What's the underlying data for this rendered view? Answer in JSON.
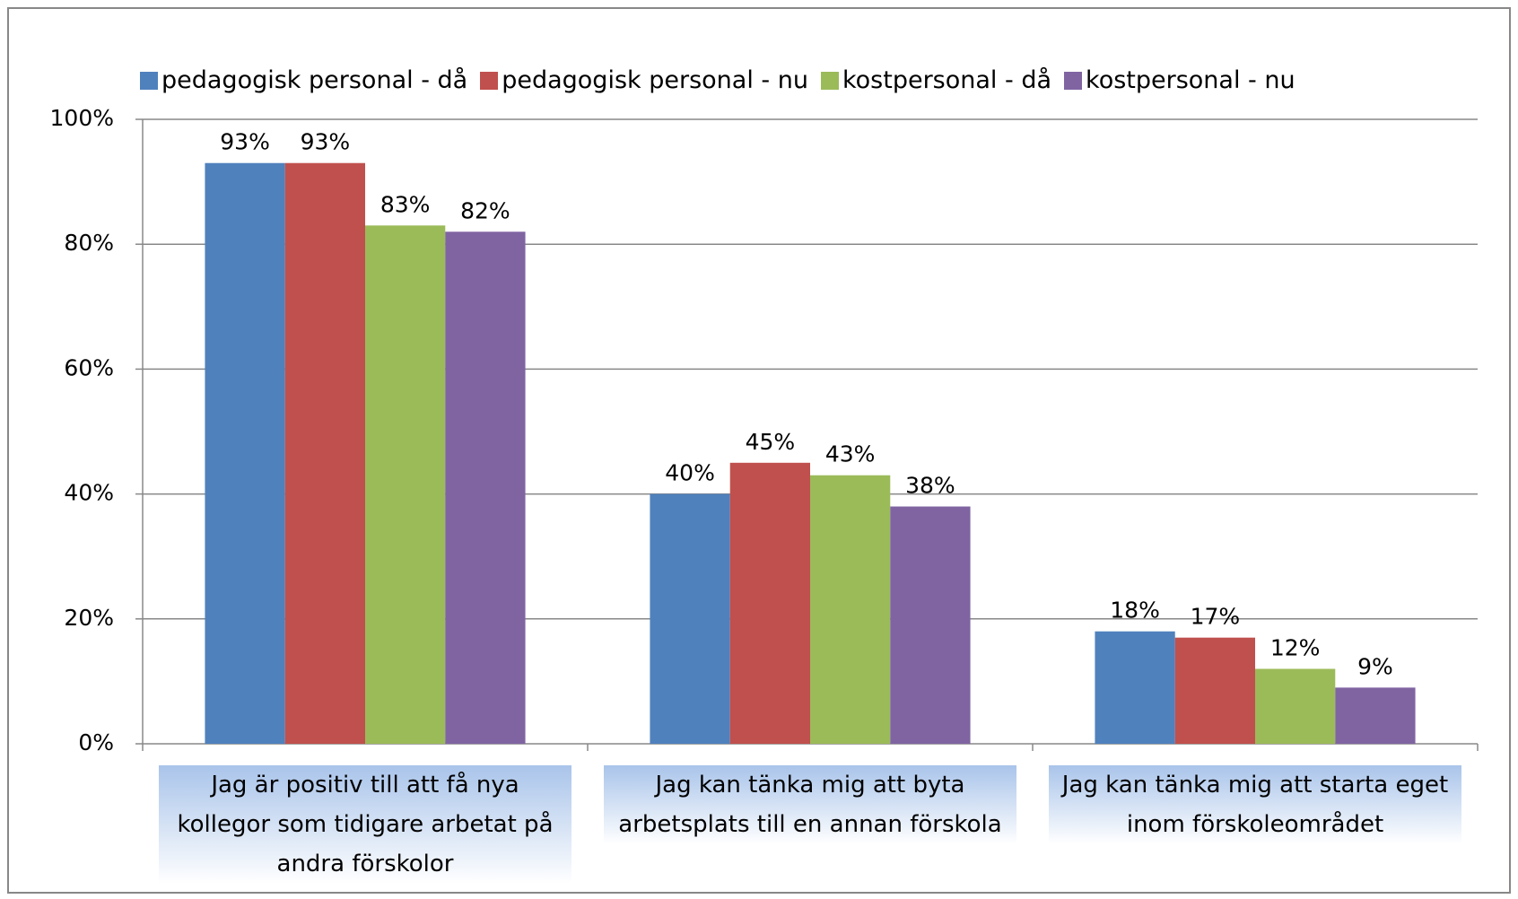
{
  "chart_data": {
    "type": "bar",
    "categories": [
      "Jag är positiv till att få nya kollegor som tidigare arbetat på andra förskolor",
      "Jag kan tänka mig att byta arbetsplats till en annan förskola",
      "Jag kan tänka mig att starta eget inom förskoleområdet"
    ],
    "series": [
      {
        "name": "pedagogisk personal - då",
        "color": "#4f81bd",
        "values": [
          93,
          40,
          18
        ],
        "value_labels": [
          "93%",
          "40%",
          "18%"
        ]
      },
      {
        "name": "pedagogisk personal - nu",
        "color": "#c0504d",
        "values": [
          93,
          45,
          17
        ],
        "value_labels": [
          "93%",
          "45%",
          "17%"
        ]
      },
      {
        "name": "kostpersonal - då",
        "color": "#9bbb59",
        "values": [
          83,
          43,
          12
        ],
        "value_labels": [
          "83%",
          "43%",
          "12%"
        ]
      },
      {
        "name": "kostpersonal - nu",
        "color": "#8064a2",
        "values": [
          82,
          38,
          9
        ],
        "value_labels": [
          "82%",
          "38%",
          "9%"
        ]
      }
    ],
    "ylim": [
      0,
      100
    ],
    "yticks": [
      {
        "value": 0,
        "label": "0%"
      },
      {
        "value": 20,
        "label": "20%"
      },
      {
        "value": 40,
        "label": "40%"
      },
      {
        "value": 60,
        "label": "60%"
      },
      {
        "value": 80,
        "label": "80%"
      },
      {
        "value": 100,
        "label": "100%"
      }
    ],
    "grid": true,
    "legend": "top"
  }
}
